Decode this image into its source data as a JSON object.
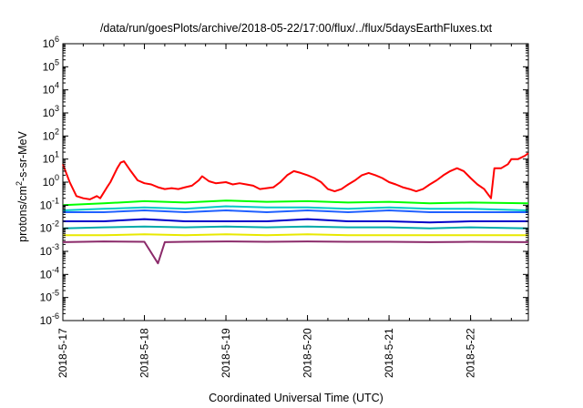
{
  "chart_data": {
    "type": "line",
    "title": "/data/run/goesPlots/archive/2018-05-22/17:00/flux/../flux/5daysEarthFluxes.txt",
    "xlabel": "Coordinated Universal Time (UTC)",
    "ylabel": {
      "prefix": "protons/cm",
      "sup": "2",
      "suffix": "-s-sr-MeV"
    },
    "y_scale": "log",
    "ylim": [
      1e-06,
      1000000.0
    ],
    "yticks": [
      {
        "base": "10",
        "exp": "-6"
      },
      {
        "base": "10",
        "exp": "-5"
      },
      {
        "base": "10",
        "exp": "-4"
      },
      {
        "base": "10",
        "exp": "-3"
      },
      {
        "base": "10",
        "exp": "-2"
      },
      {
        "base": "10",
        "exp": "-1"
      },
      {
        "base": "10",
        "exp": "0"
      },
      {
        "base": "10",
        "exp": "1"
      },
      {
        "base": "10",
        "exp": "2"
      },
      {
        "base": "10",
        "exp": "3"
      },
      {
        "base": "10",
        "exp": "4"
      },
      {
        "base": "10",
        "exp": "5"
      },
      {
        "base": "10",
        "exp": "6"
      }
    ],
    "xlim": [
      "2018-05-17 00:00",
      "2018-05-22 17:00"
    ],
    "xticks": [
      "2018-5-17",
      "2018-5-18",
      "2018-5-19",
      "2018-5-20",
      "2018-5-21",
      "2018-5-22"
    ],
    "grid": false,
    "series": [
      {
        "color": "#ff0000",
        "values": [
          [
            "2018-05-17 00:00",
            6
          ],
          [
            "2018-05-17 02:00",
            1.0
          ],
          [
            "2018-05-17 04:00",
            0.25
          ],
          [
            "2018-05-17 06:00",
            0.2
          ],
          [
            "2018-05-17 08:00",
            0.18
          ],
          [
            "2018-05-17 10:00",
            0.25
          ],
          [
            "2018-05-17 11:00",
            0.2
          ],
          [
            "2018-05-17 13:00",
            0.6
          ],
          [
            "2018-05-17 14:00",
            1.0
          ],
          [
            "2018-05-17 16:00",
            4
          ],
          [
            "2018-05-17 17:00",
            7
          ],
          [
            "2018-05-17 18:00",
            8
          ],
          [
            "2018-05-17 20:00",
            3
          ],
          [
            "2018-05-17 22:00",
            1.2
          ],
          [
            "2018-05-18 00:00",
            0.9
          ],
          [
            "2018-05-18 02:00",
            0.8
          ],
          [
            "2018-05-18 04:00",
            0.6
          ],
          [
            "2018-05-18 06:00",
            0.5
          ],
          [
            "2018-05-18 08:00",
            0.55
          ],
          [
            "2018-05-18 10:00",
            0.5
          ],
          [
            "2018-05-18 12:00",
            0.6
          ],
          [
            "2018-05-18 14:00",
            0.7
          ],
          [
            "2018-05-18 16:00",
            1.2
          ],
          [
            "2018-05-18 17:00",
            1.8
          ],
          [
            "2018-05-18 19:00",
            1.1
          ],
          [
            "2018-05-18 21:00",
            0.9
          ],
          [
            "2018-05-19 00:00",
            1.0
          ],
          [
            "2018-05-19 02:00",
            0.8
          ],
          [
            "2018-05-19 04:00",
            0.9
          ],
          [
            "2018-05-19 06:00",
            0.8
          ],
          [
            "2018-05-19 08:00",
            0.7
          ],
          [
            "2018-05-19 10:00",
            0.5
          ],
          [
            "2018-05-19 12:00",
            0.55
          ],
          [
            "2018-05-19 14:00",
            0.6
          ],
          [
            "2018-05-19 16:00",
            1.0
          ],
          [
            "2018-05-19 18:00",
            2.0
          ],
          [
            "2018-05-19 20:00",
            3.0
          ],
          [
            "2018-05-19 22:00",
            2.5
          ],
          [
            "2018-05-20 00:00",
            2.0
          ],
          [
            "2018-05-20 02:00",
            1.5
          ],
          [
            "2018-05-20 04:00",
            1.0
          ],
          [
            "2018-05-20 06:00",
            0.5
          ],
          [
            "2018-05-20 08:00",
            0.4
          ],
          [
            "2018-05-20 10:00",
            0.5
          ],
          [
            "2018-05-20 12:00",
            0.8
          ],
          [
            "2018-05-20 14:00",
            1.2
          ],
          [
            "2018-05-20 16:00",
            2.0
          ],
          [
            "2018-05-20 18:00",
            2.5
          ],
          [
            "2018-05-20 20:00",
            2.0
          ],
          [
            "2018-05-20 22:00",
            1.5
          ],
          [
            "2018-05-21 00:00",
            1.0
          ],
          [
            "2018-05-21 02:00",
            0.8
          ],
          [
            "2018-05-21 04:00",
            0.6
          ],
          [
            "2018-05-21 06:00",
            0.5
          ],
          [
            "2018-05-21 08:00",
            0.4
          ],
          [
            "2018-05-21 10:00",
            0.5
          ],
          [
            "2018-05-21 12:00",
            0.8
          ],
          [
            "2018-05-21 14:00",
            1.2
          ],
          [
            "2018-05-21 16:00",
            2.0
          ],
          [
            "2018-05-21 18:00",
            3.0
          ],
          [
            "2018-05-21 20:00",
            4.0
          ],
          [
            "2018-05-21 22:00",
            3.0
          ],
          [
            "2018-05-22 00:00",
            1.5
          ],
          [
            "2018-05-22 02:00",
            0.8
          ],
          [
            "2018-05-22 04:00",
            0.5
          ],
          [
            "2018-05-22 06:00",
            0.2
          ],
          [
            "2018-05-22 07:00",
            4
          ],
          [
            "2018-05-22 09:00",
            4
          ],
          [
            "2018-05-22 11:00",
            6
          ],
          [
            "2018-05-22 12:00",
            10
          ],
          [
            "2018-05-22 14:00",
            10
          ],
          [
            "2018-05-22 16:00",
            14
          ],
          [
            "2018-05-22 17:00",
            18
          ]
        ]
      },
      {
        "color": "#00ff00",
        "values": [
          [
            "2018-05-17 00:00",
            0.1
          ],
          [
            "2018-05-17 12:00",
            0.12
          ],
          [
            "2018-05-18 00:00",
            0.15
          ],
          [
            "2018-05-18 12:00",
            0.13
          ],
          [
            "2018-05-19 00:00",
            0.16
          ],
          [
            "2018-05-19 12:00",
            0.14
          ],
          [
            "2018-05-20 00:00",
            0.15
          ],
          [
            "2018-05-20 12:00",
            0.13
          ],
          [
            "2018-05-21 00:00",
            0.14
          ],
          [
            "2018-05-21 12:00",
            0.12
          ],
          [
            "2018-05-22 00:00",
            0.13
          ],
          [
            "2018-05-22 17:00",
            0.12
          ]
        ]
      },
      {
        "color": "#00c8c8",
        "values": [
          [
            "2018-05-17 00:00",
            0.06
          ],
          [
            "2018-05-17 12:00",
            0.07
          ],
          [
            "2018-05-18 00:00",
            0.08
          ],
          [
            "2018-05-18 12:00",
            0.07
          ],
          [
            "2018-05-19 00:00",
            0.09
          ],
          [
            "2018-05-19 12:00",
            0.08
          ],
          [
            "2018-05-20 00:00",
            0.08
          ],
          [
            "2018-05-20 12:00",
            0.07
          ],
          [
            "2018-05-21 00:00",
            0.08
          ],
          [
            "2018-05-21 12:00",
            0.07
          ],
          [
            "2018-05-22 00:00",
            0.07
          ],
          [
            "2018-05-22 17:00",
            0.06
          ]
        ]
      },
      {
        "color": "#2060ff",
        "values": [
          [
            "2018-05-17 00:00",
            0.05
          ],
          [
            "2018-05-17 12:00",
            0.05
          ],
          [
            "2018-05-18 00:00",
            0.06
          ],
          [
            "2018-05-18 12:00",
            0.05
          ],
          [
            "2018-05-19 00:00",
            0.06
          ],
          [
            "2018-05-19 12:00",
            0.05
          ],
          [
            "2018-05-20 00:00",
            0.06
          ],
          [
            "2018-05-20 12:00",
            0.05
          ],
          [
            "2018-05-21 00:00",
            0.06
          ],
          [
            "2018-05-21 12:00",
            0.05
          ],
          [
            "2018-05-22 00:00",
            0.05
          ],
          [
            "2018-05-22 17:00",
            0.05
          ]
        ]
      },
      {
        "color": "#0000c8",
        "values": [
          [
            "2018-05-17 00:00",
            0.02
          ],
          [
            "2018-05-17 12:00",
            0.02
          ],
          [
            "2018-05-18 00:00",
            0.025
          ],
          [
            "2018-05-18 12:00",
            0.02
          ],
          [
            "2018-05-19 00:00",
            0.02
          ],
          [
            "2018-05-19 12:00",
            0.02
          ],
          [
            "2018-05-20 00:00",
            0.025
          ],
          [
            "2018-05-20 12:00",
            0.02
          ],
          [
            "2018-05-21 00:00",
            0.02
          ],
          [
            "2018-05-21 12:00",
            0.018
          ],
          [
            "2018-05-22 00:00",
            0.02
          ],
          [
            "2018-05-22 17:00",
            0.02
          ]
        ]
      },
      {
        "color": "#00aaaa",
        "values": [
          [
            "2018-05-17 00:00",
            0.01
          ],
          [
            "2018-05-17 12:00",
            0.011
          ],
          [
            "2018-05-18 00:00",
            0.012
          ],
          [
            "2018-05-18 12:00",
            0.011
          ],
          [
            "2018-05-19 00:00",
            0.012
          ],
          [
            "2018-05-19 12:00",
            0.011
          ],
          [
            "2018-05-20 00:00",
            0.012
          ],
          [
            "2018-05-20 12:00",
            0.011
          ],
          [
            "2018-05-21 00:00",
            0.011
          ],
          [
            "2018-05-21 12:00",
            0.01
          ],
          [
            "2018-05-22 00:00",
            0.011
          ],
          [
            "2018-05-22 17:00",
            0.01
          ]
        ]
      },
      {
        "color": "#e8e800",
        "values": [
          [
            "2018-05-17 00:00",
            0.005
          ],
          [
            "2018-05-17 12:00",
            0.005
          ],
          [
            "2018-05-18 00:00",
            0.0055
          ],
          [
            "2018-05-18 12:00",
            0.005
          ],
          [
            "2018-05-19 00:00",
            0.0055
          ],
          [
            "2018-05-19 12:00",
            0.005
          ],
          [
            "2018-05-20 00:00",
            0.0055
          ],
          [
            "2018-05-20 12:00",
            0.005
          ],
          [
            "2018-05-21 00:00",
            0.005
          ],
          [
            "2018-05-21 12:00",
            0.005
          ],
          [
            "2018-05-22 00:00",
            0.005
          ],
          [
            "2018-05-22 17:00",
            0.005
          ]
        ]
      },
      {
        "color": "#8b2a6a",
        "values": [
          [
            "2018-05-17 00:00",
            0.0025
          ],
          [
            "2018-05-17 12:00",
            0.0027
          ],
          [
            "2018-05-18 00:00",
            0.0026
          ],
          [
            "2018-05-18 04:00",
            0.0003
          ],
          [
            "2018-05-18 06:00",
            0.0025
          ],
          [
            "2018-05-18 12:00",
            0.0026
          ],
          [
            "2018-05-19 00:00",
            0.0027
          ],
          [
            "2018-05-19 12:00",
            0.0026
          ],
          [
            "2018-05-20 00:00",
            0.0027
          ],
          [
            "2018-05-20 12:00",
            0.0026
          ],
          [
            "2018-05-21 00:00",
            0.0026
          ],
          [
            "2018-05-21 12:00",
            0.0025
          ],
          [
            "2018-05-22 00:00",
            0.0026
          ],
          [
            "2018-05-22 17:00",
            0.0025
          ]
        ]
      }
    ]
  }
}
